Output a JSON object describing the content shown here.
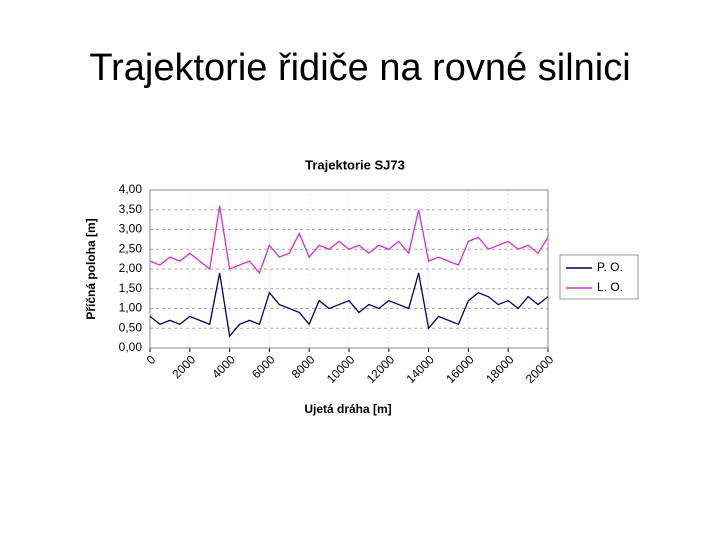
{
  "slide_title": "Trajektorie řidiče na rovné silnici",
  "chart_data": {
    "type": "line",
    "title": "Trajektorie SJ73",
    "x_label": "Ujetá dráha [m]",
    "y_label": "Příčná poloha [m]",
    "x": [
      0,
      500,
      1000,
      1500,
      2000,
      2500,
      3000,
      3500,
      4000,
      4500,
      5000,
      5500,
      6000,
      6500,
      7000,
      7500,
      8000,
      8500,
      9000,
      9500,
      10000,
      10500,
      11000,
      11500,
      12000,
      12500,
      13000,
      13500,
      14000,
      14500,
      15000,
      15500,
      16000,
      16500,
      17000,
      17500,
      18000,
      18500,
      19000,
      19500,
      20000
    ],
    "series": [
      {
        "name": "P. O.",
        "color": "#000066",
        "values": [
          0.8,
          0.6,
          0.7,
          0.6,
          0.8,
          0.7,
          0.6,
          1.9,
          0.3,
          0.6,
          0.7,
          0.6,
          1.4,
          1.1,
          1.0,
          0.9,
          0.6,
          1.2,
          1.0,
          1.1,
          1.2,
          0.9,
          1.1,
          1.0,
          1.2,
          1.1,
          1.0,
          1.9,
          0.5,
          0.8,
          0.7,
          0.6,
          1.2,
          1.4,
          1.3,
          1.1,
          1.2,
          1.0,
          1.3,
          1.1,
          1.3
        ]
      },
      {
        "name": "L. O.",
        "color": "#cc33cc",
        "values": [
          2.2,
          2.1,
          2.3,
          2.2,
          2.4,
          2.2,
          2.0,
          3.6,
          2.0,
          2.1,
          2.2,
          1.9,
          2.6,
          2.3,
          2.4,
          2.9,
          2.3,
          2.6,
          2.5,
          2.7,
          2.5,
          2.6,
          2.4,
          2.6,
          2.5,
          2.7,
          2.4,
          3.5,
          2.2,
          2.3,
          2.2,
          2.1,
          2.7,
          2.8,
          2.5,
          2.6,
          2.7,
          2.5,
          2.6,
          2.4,
          2.8
        ]
      }
    ],
    "xlim": [
      0,
      20000
    ],
    "xticks": [
      0,
      2000,
      4000,
      6000,
      8000,
      10000,
      12000,
      14000,
      16000,
      18000,
      20000
    ],
    "ylim": [
      0,
      4
    ],
    "yticks": [
      {
        "value": 0,
        "label": "0,00"
      },
      {
        "value": 0.5,
        "label": "0,50"
      },
      {
        "value": 1,
        "label": "1,00"
      },
      {
        "value": 1.5,
        "label": "1,50"
      },
      {
        "value": 2,
        "label": "2,00"
      },
      {
        "value": 2.5,
        "label": "2,50"
      },
      {
        "value": 3,
        "label": "3,00"
      },
      {
        "value": 3.5,
        "label": "3,50"
      },
      {
        "value": 4,
        "label": "4,00"
      }
    ],
    "grid": true,
    "legend": "right"
  }
}
